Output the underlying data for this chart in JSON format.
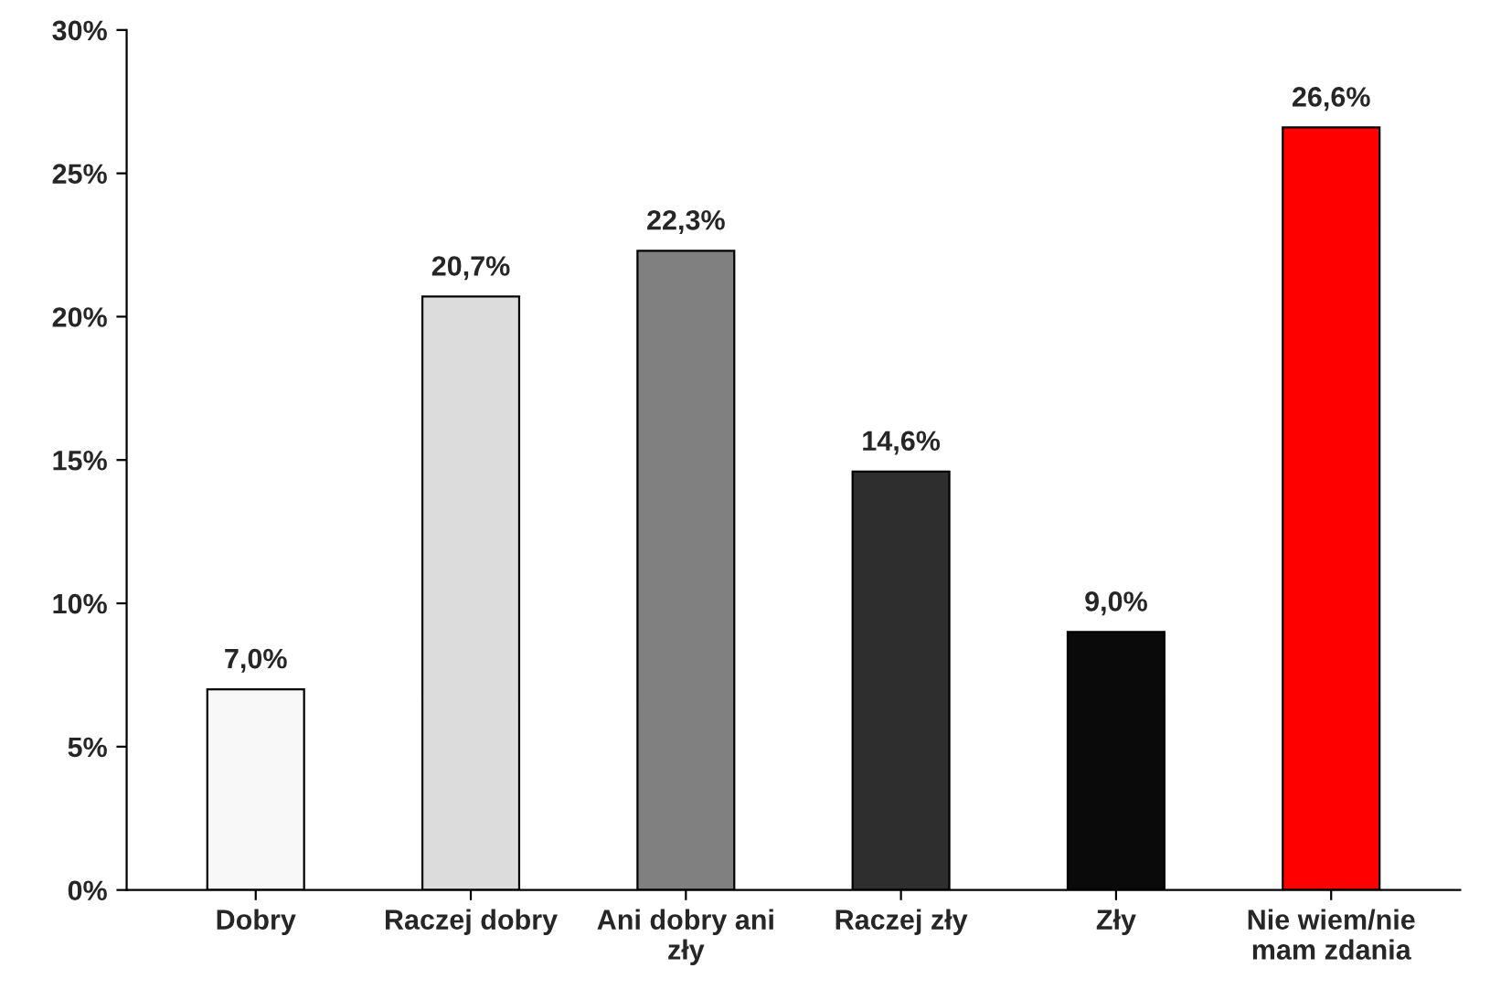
{
  "chart_data": {
    "type": "bar",
    "categories": [
      "Dobry",
      "Raczej dobry",
      "Ani dobry ani zły",
      "Raczej zły",
      "Zły",
      "Nie wiem/nie mam zdania"
    ],
    "values": [
      7.0,
      20.7,
      22.3,
      14.6,
      9.0,
      26.6
    ],
    "colors": [
      "#f8f8f8",
      "#dcdcdc",
      "#808080",
      "#2e2e2e",
      "#0a0a0a",
      "#ff0000"
    ],
    "value_labels": [
      "7,0%",
      "20,7%",
      "22,3%",
      "14,6%",
      "9,0%",
      "26,6%"
    ],
    "ylim": [
      0,
      30
    ],
    "yticks": [
      {
        "value": 0,
        "label": "0%"
      },
      {
        "value": 5,
        "label": "5%"
      },
      {
        "value": 10,
        "label": "10%"
      },
      {
        "value": 15,
        "label": "15%"
      },
      {
        "value": 20,
        "label": "20%"
      },
      {
        "value": 25,
        "label": "25%"
      },
      {
        "value": 30,
        "label": "30%"
      }
    ],
    "grid": false,
    "legend": false
  }
}
